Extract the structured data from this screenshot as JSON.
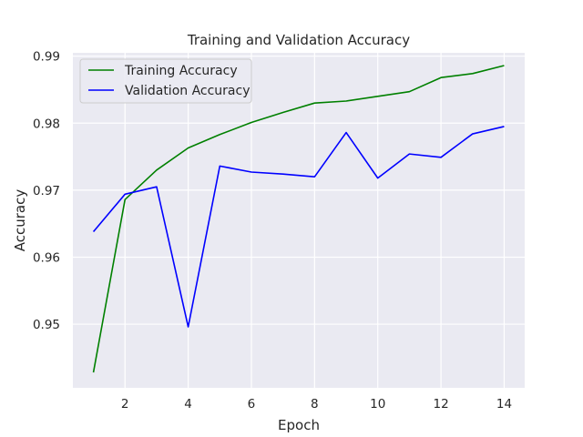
{
  "chart_data": {
    "type": "line",
    "title": "Training and Validation Accuracy",
    "xlabel": "Epoch",
    "ylabel": "Accuracy",
    "xlim": [
      0.35,
      14.65
    ],
    "ylim": [
      0.9405,
      0.9905
    ],
    "xticks": [
      2,
      4,
      6,
      8,
      10,
      12,
      14
    ],
    "yticks": [
      0.95,
      0.96,
      0.97,
      0.98,
      0.99
    ],
    "grid": true,
    "legend_position": "upper-left",
    "x": [
      1,
      2,
      3,
      4,
      5,
      6,
      7,
      8,
      9,
      10,
      11,
      12,
      13,
      14
    ],
    "series": [
      {
        "name": "Training Accuracy",
        "color": "#008000",
        "values": [
          0.9428,
          0.9686,
          0.973,
          0.9763,
          0.9783,
          0.9801,
          0.9816,
          0.983,
          0.9833,
          0.984,
          0.9847,
          0.9868,
          0.9874,
          0.9886
        ]
      },
      {
        "name": "Validation Accuracy",
        "color": "#0000ff",
        "values": [
          0.9638,
          0.9694,
          0.9705,
          0.9496,
          0.9736,
          0.9727,
          0.9724,
          0.972,
          0.9786,
          0.9718,
          0.9754,
          0.9749,
          0.9784,
          0.9795
        ]
      }
    ],
    "colors": {
      "plot_background": "#eaeaf2",
      "grid": "#ffffff",
      "text": "#262626"
    }
  }
}
